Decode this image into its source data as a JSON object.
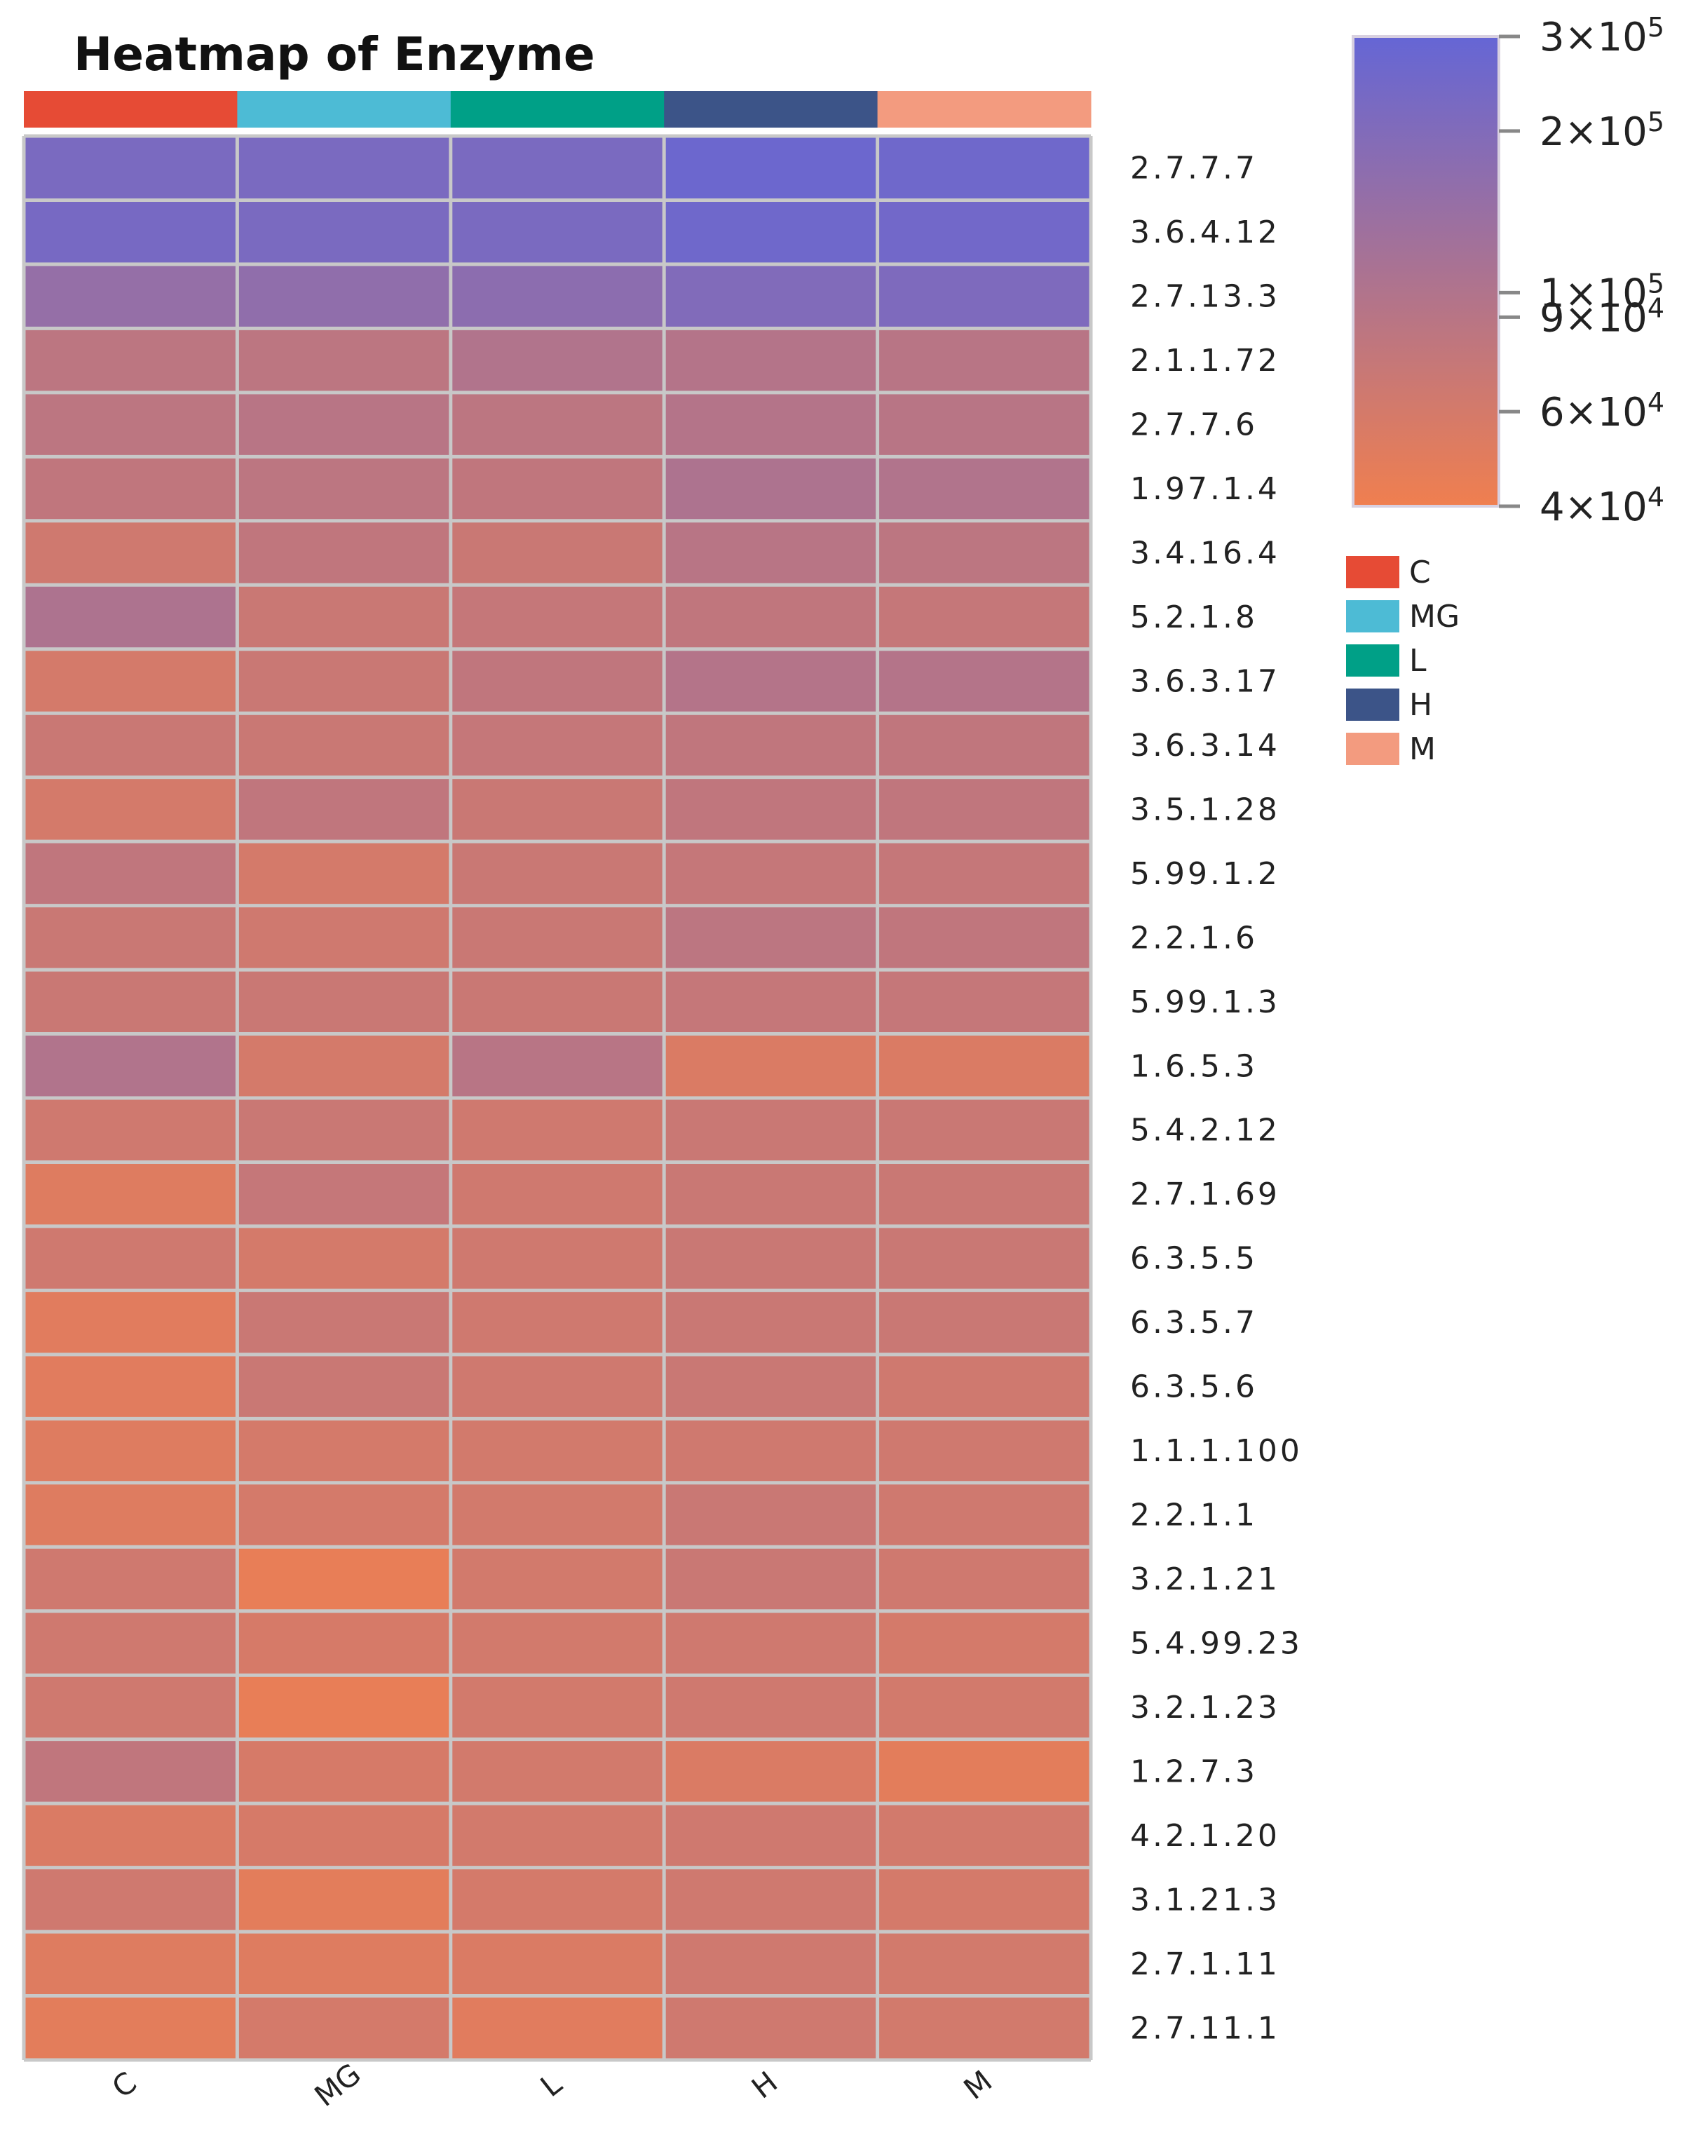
{
  "chart_data": {
    "type": "heatmap",
    "title": "Heatmap of Enzyme",
    "columns": [
      "C",
      "MG",
      "L",
      "H",
      "M"
    ],
    "rows": [
      "2.7.7.7",
      "3.6.4.12",
      "2.7.13.3",
      "2.1.1.72",
      "2.7.7.6",
      "1.97.1.4",
      "3.4.16.4",
      "5.2.1.8",
      "3.6.3.17",
      "3.6.3.14",
      "3.5.1.28",
      "5.99.1.2",
      "2.2.1.6",
      "5.99.1.3",
      "1.6.5.3",
      "5.4.2.12",
      "2.7.1.69",
      "6.3.5.5",
      "6.3.5.7",
      "6.3.5.6",
      "1.1.1.100",
      "2.2.1.1",
      "3.2.1.21",
      "5.4.99.23",
      "3.2.1.23",
      "1.2.7.3",
      "4.2.1.20",
      "3.1.21.3",
      "2.7.1.11",
      "2.7.11.1"
    ],
    "values": [
      [
        220000,
        220000,
        220000,
        270000,
        260000
      ],
      [
        230000,
        220000,
        220000,
        260000,
        250000
      ],
      [
        150000,
        160000,
        170000,
        200000,
        210000
      ],
      [
        85000,
        85000,
        100000,
        95000,
        90000
      ],
      [
        85000,
        90000,
        85000,
        95000,
        90000
      ],
      [
        80000,
        85000,
        80000,
        105000,
        100000
      ],
      [
        65000,
        80000,
        70000,
        90000,
        85000
      ],
      [
        105000,
        70000,
        75000,
        80000,
        75000
      ],
      [
        60000,
        70000,
        80000,
        95000,
        95000
      ],
      [
        70000,
        70000,
        75000,
        80000,
        80000
      ],
      [
        60000,
        80000,
        70000,
        80000,
        80000
      ],
      [
        80000,
        60000,
        70000,
        75000,
        75000
      ],
      [
        70000,
        65000,
        70000,
        85000,
        80000
      ],
      [
        70000,
        70000,
        70000,
        75000,
        75000
      ],
      [
        100000,
        60000,
        90000,
        55000,
        55000
      ],
      [
        65000,
        70000,
        65000,
        70000,
        70000
      ],
      [
        52000,
        75000,
        65000,
        70000,
        70000
      ],
      [
        65000,
        60000,
        65000,
        70000,
        70000
      ],
      [
        50000,
        70000,
        65000,
        70000,
        70000
      ],
      [
        50000,
        70000,
        65000,
        70000,
        65000
      ],
      [
        52000,
        60000,
        62000,
        65000,
        65000
      ],
      [
        52000,
        60000,
        62000,
        70000,
        65000
      ],
      [
        65000,
        45000,
        62000,
        70000,
        65000
      ],
      [
        65000,
        58000,
        62000,
        65000,
        60000
      ],
      [
        65000,
        45000,
        62000,
        65000,
        62000
      ],
      [
        80000,
        58000,
        62000,
        55000,
        48000
      ],
      [
        55000,
        58000,
        62000,
        65000,
        62000
      ],
      [
        65000,
        48000,
        60000,
        65000,
        60000
      ],
      [
        52000,
        52000,
        55000,
        65000,
        62000
      ],
      [
        48000,
        60000,
        50000,
        65000,
        62000
      ]
    ],
    "colorbar": {
      "scale": "log",
      "min": 40000,
      "max": 300000,
      "low_color": "#f07f4f",
      "high_color": "#6566d5",
      "ticks": [
        {
          "value": 300000,
          "mantissa": "3",
          "exponent": "5"
        },
        {
          "value": 200000,
          "mantissa": "2",
          "exponent": "5"
        },
        {
          "value": 100000,
          "mantissa": "1",
          "exponent": "5"
        },
        {
          "value": 90000,
          "mantissa": "9",
          "exponent": "4"
        },
        {
          "value": 60000,
          "mantissa": "6",
          "exponent": "4"
        },
        {
          "value": 40000,
          "mantissa": "4",
          "exponent": "4"
        }
      ]
    },
    "legend": {
      "position": "right",
      "items": [
        {
          "label": "C",
          "color": "#e64b35"
        },
        {
          "label": "MG",
          "color": "#4dbbd5"
        },
        {
          "label": "L",
          "color": "#00a087"
        },
        {
          "label": "H",
          "color": "#3c5488"
        },
        {
          "label": "M",
          "color": "#f39b7f"
        }
      ]
    }
  }
}
